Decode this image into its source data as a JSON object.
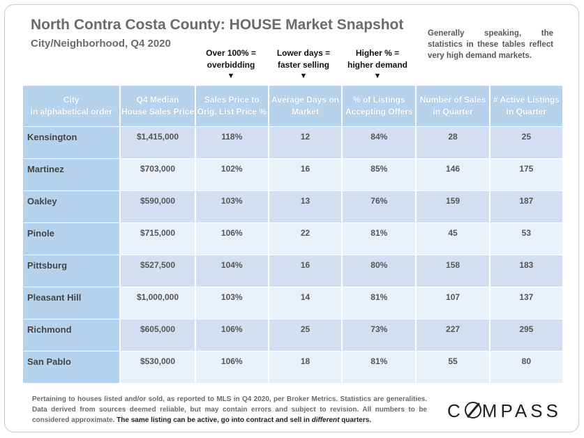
{
  "header": {
    "title": "North Contra Costa County: HOUSE Market Snapshot",
    "subtitle": "City/Neighborhood, Q4 2020",
    "note": "Generally speaking, the statistics in these tables reflect very high demand markets."
  },
  "callouts": [
    {
      "line1": "Over 100% =",
      "line2": "overbidding",
      "arrow": "▼"
    },
    {
      "line1": "Lower days =",
      "line2": "faster selling",
      "arrow": "▼"
    },
    {
      "line1": "Higher % =",
      "line2": "higher demand",
      "arrow": "▼"
    }
  ],
  "table": {
    "columns": [
      {
        "line1": "City",
        "line2": "in alphabetical order"
      },
      {
        "line1": "Q4 Median",
        "line2": "House Sales Price"
      },
      {
        "line1": "Sales Price to",
        "line2": "Orig. List Price %"
      },
      {
        "line1": "Average Days on",
        "line2": "Market"
      },
      {
        "line1": "% of Listings",
        "line2": "Accepting Offers"
      },
      {
        "line1": "Number of Sales",
        "line2": "in Quarter"
      },
      {
        "line1": "# Active Listings",
        "line2": "in Quarter"
      }
    ],
    "rows": [
      [
        "Kensington",
        "$1,415,000",
        "118%",
        "12",
        "84%",
        "28",
        "25"
      ],
      [
        "Martinez",
        "$703,000",
        "102%",
        "16",
        "85%",
        "146",
        "175"
      ],
      [
        "Oakley",
        "$590,000",
        "103%",
        "13",
        "76%",
        "159",
        "187"
      ],
      [
        "Pinole",
        "$715,000",
        "106%",
        "22",
        "81%",
        "45",
        "53"
      ],
      [
        "Pittsburg",
        "$527,500",
        "104%",
        "16",
        "80%",
        "158",
        "183"
      ],
      [
        "Pleasant Hill",
        "$1,000,000",
        "103%",
        "14",
        "81%",
        "107",
        "137"
      ],
      [
        "Richmond",
        "$605,000",
        "106%",
        "25",
        "73%",
        "227",
        "295"
      ],
      [
        "San Pablo",
        "$530,000",
        "106%",
        "18",
        "81%",
        "55",
        "80"
      ]
    ]
  },
  "footer": {
    "text": "Pertaining to houses listed and/or sold, as reported to MLS in Q4 2020, per Broker Metrics. Statistics are generalities. Data derived from sources deemed reliable, but may contain errors and subject to revision. All numbers to be considered approximate.",
    "emphasis_a": "The same listing can be active, go into contract and sell in",
    "emphasis_italic": "different",
    "emphasis_b": "quarters."
  },
  "logo": {
    "text": "COMPASS",
    "before": "C",
    "after": "MPASS"
  }
}
